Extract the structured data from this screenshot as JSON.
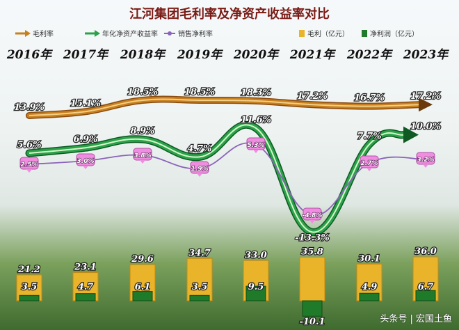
{
  "chart_data": {
    "type": "bar",
    "title": "江河集团毛利率及净资产收益率对比",
    "categories": [
      "2016年",
      "2017年",
      "2018年",
      "2019年",
      "2020年",
      "2021年",
      "2022年",
      "2023年"
    ],
    "legend": {
      "placement": "top",
      "items": [
        {
          "key": "gross_margin",
          "label": "毛利率",
          "color": "#c8801e"
        },
        {
          "key": "roe",
          "label": "年化净资产收益率",
          "color": "#2aa24a"
        },
        {
          "key": "net_margin",
          "label": "销售净利率",
          "color": "#8a64b8"
        },
        {
          "key": "gross_profit",
          "label": "毛利（亿元）",
          "color": "#e9b32a"
        },
        {
          "key": "net_profit",
          "label": "净利润（亿元）",
          "color": "#1f7a2a"
        }
      ]
    },
    "series": [
      {
        "name": "毛利率",
        "type": "line",
        "unit": "%",
        "values": [
          13.9,
          15.1,
          18.5,
          18.5,
          18.3,
          17.2,
          16.7,
          17.2
        ],
        "labels": [
          "13.9%",
          "15.1%",
          "18.5%",
          "18.5%",
          "18.3%",
          "17.2%",
          "16.7%",
          "17.2%"
        ]
      },
      {
        "name": "年化净资产收益率",
        "type": "line",
        "unit": "%",
        "values": [
          5.6,
          6.9,
          8.9,
          4.7,
          11.6,
          -13.3,
          7.7,
          10.0
        ],
        "labels": [
          "5.6%",
          "6.9%",
          "8.9%",
          "4.7%",
          "11.6%",
          "-13.3%",
          "7.7%",
          "10.0%"
        ]
      },
      {
        "name": "销售净利率",
        "type": "line",
        "unit": "%",
        "values": [
          2.5,
          3.0,
          3.8,
          1.9,
          5.3,
          -4.8,
          2.7,
          3.2
        ],
        "labels": [
          "2.5%",
          "3.0%",
          "3.8%",
          "1.9%",
          "5.3%",
          "-4.8%",
          "2.7%",
          "3.2%"
        ]
      },
      {
        "name": "毛利（亿元）",
        "type": "bar",
        "unit": "亿元",
        "values": [
          21.2,
          23.1,
          29.6,
          34.7,
          33.0,
          35.8,
          30.1,
          36.0
        ],
        "labels": [
          "21.2",
          "23.1",
          "29.6",
          "34.7",
          "33.0",
          "35.8",
          "30.1",
          "36.0"
        ]
      },
      {
        "name": "净利润（亿元）",
        "type": "bar",
        "unit": "亿元",
        "values": [
          3.5,
          4.7,
          6.1,
          3.5,
          9.5,
          -10.1,
          4.9,
          6.7
        ],
        "labels": [
          "3.5",
          "4.7",
          "6.1",
          "3.5",
          "9.5",
          "-10.1",
          "4.9",
          "6.7"
        ]
      }
    ],
    "grid": false
  },
  "watermark": "头条号 | 宏国土鱼",
  "colors": {
    "title": "#7a1a14",
    "year": "#111111",
    "gross_margin": "#c8801e",
    "roe": "#2aa24a",
    "net_margin": "#8a64b8",
    "gross_bar": "#e9b32a",
    "net_bar": "#1f7a2a"
  }
}
